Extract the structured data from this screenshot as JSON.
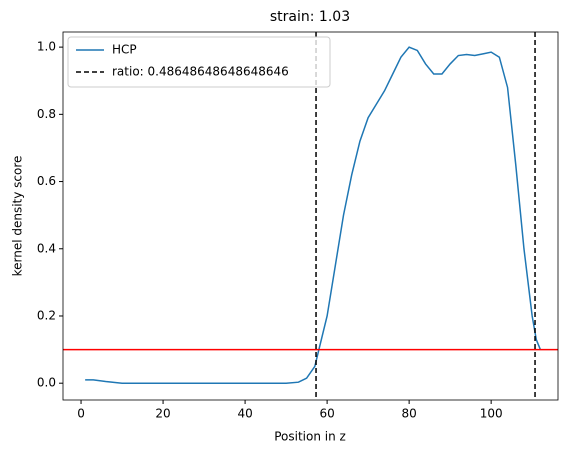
{
  "chart_data": {
    "type": "line",
    "title": "strain: 1.03",
    "xlabel": "Position in z",
    "ylabel": "kernel density score",
    "x": [
      1,
      3,
      6,
      10,
      20,
      30,
      40,
      50,
      53,
      55,
      57,
      58,
      60,
      62,
      64,
      66,
      68,
      70,
      72,
      74,
      76,
      78,
      80,
      82,
      84,
      86,
      88,
      90,
      92,
      94,
      96,
      98,
      100,
      102,
      104,
      106,
      108,
      110,
      111,
      112
    ],
    "series": [
      {
        "name": "HCP",
        "color": "#1f77b4",
        "values": [
          0.01,
          0.01,
          0.005,
          0.0,
          0.0,
          0.0,
          0.0,
          0.0,
          0.003,
          0.015,
          0.05,
          0.1,
          0.2,
          0.35,
          0.5,
          0.62,
          0.72,
          0.79,
          0.83,
          0.87,
          0.92,
          0.97,
          1.0,
          0.99,
          0.95,
          0.92,
          0.92,
          0.95,
          0.975,
          0.978,
          0.975,
          0.98,
          0.985,
          0.97,
          0.88,
          0.65,
          0.4,
          0.2,
          0.13,
          0.1
        ]
      }
    ],
    "vlines": {
      "name": "ratio: 0.48648648648648646",
      "color": "#000000",
      "x": [
        57.3,
        110.7
      ]
    },
    "hline": {
      "value": 0.1,
      "color": "#ff0000"
    },
    "xlim": [
      -4.4,
      116.3
    ],
    "ylim": [
      -0.05,
      1.045
    ],
    "xticks": [
      0,
      20,
      40,
      60,
      80,
      100
    ],
    "yticks": [
      {
        "value": 0,
        "label": "0.0"
      },
      0.2,
      0.4,
      0.6,
      0.8,
      {
        "value": 1,
        "label": "1.0"
      }
    ],
    "legend": "upper left"
  }
}
